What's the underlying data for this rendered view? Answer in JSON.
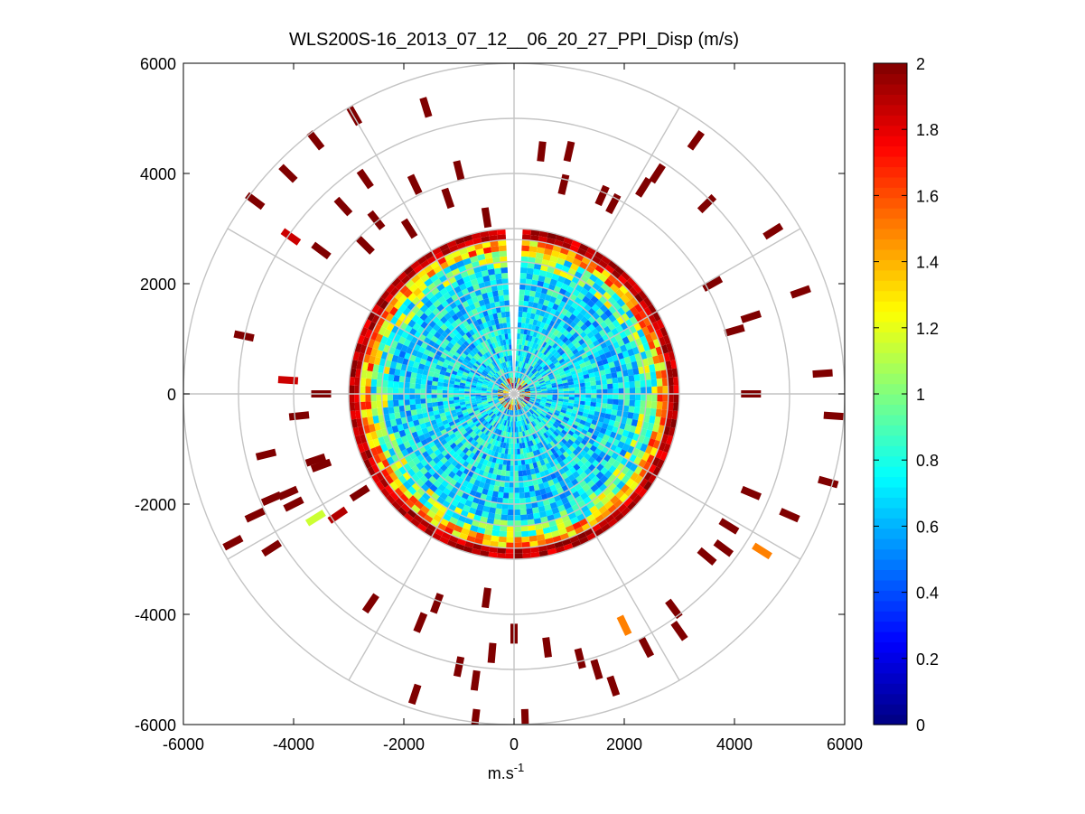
{
  "chart_data": {
    "type": "heatmap",
    "subtype": "polar PPI scan",
    "title": "WLS200S-16_2013_07_12__06_20_27_PPI_Disp (m/s)",
    "xlabel": "m.s",
    "xlabel_superscript": "-1",
    "ylabel": "",
    "xlim": [
      -6000,
      6000
    ],
    "ylim": [
      -6000,
      6000
    ],
    "xticks": [
      -6000,
      -4000,
      -2000,
      0,
      2000,
      4000,
      6000
    ],
    "yticks": [
      6000,
      4000,
      2000,
      0,
      -2000,
      -4000,
      -6000
    ],
    "xtick_labels": [
      "-6000",
      "-4000",
      "-2000",
      "0",
      "2000",
      "4000",
      "6000"
    ],
    "ytick_labels": [
      "6000",
      "4000",
      "2000",
      "0",
      "-2000",
      "-4000",
      "-6000"
    ],
    "polar_grid": {
      "range_rings": [
        400,
        800,
        1200,
        1600,
        2000,
        2400,
        2800,
        3000,
        4000,
        5000,
        6000
      ],
      "spoke_angles_deg": [
        0,
        30,
        60,
        90,
        120,
        150,
        180,
        210,
        240,
        270,
        300,
        330
      ],
      "color": "#c4c4c4"
    },
    "dense_region": {
      "range_max_m": 2950,
      "missing_sector_az_deg": [
        -4,
        4
      ],
      "typical_value": 0.7,
      "edge_value": 1.3,
      "rim_value": 2.0
    },
    "colorbar": {
      "colormap": "jet",
      "range": [
        0,
        2
      ],
      "ticks": [
        0,
        0.2,
        0.4,
        0.6,
        0.8,
        1,
        1.2,
        1.4,
        1.6,
        1.8,
        2
      ],
      "tick_labels": [
        "0",
        "0.2",
        "0.4",
        "0.6",
        "0.8",
        "1",
        "1.2",
        "1.4",
        "1.6",
        "1.8",
        "2"
      ]
    },
    "sparse_points": [
      {
        "x": -1600,
        "y": 5200,
        "v": 2
      },
      {
        "x": -2900,
        "y": 5050,
        "v": 2
      },
      {
        "x": -3600,
        "y": 4600,
        "v": 2
      },
      {
        "x": -4100,
        "y": 4000,
        "v": 2
      },
      {
        "x": -4700,
        "y": 3500,
        "v": 2
      },
      {
        "x": -3100,
        "y": 3400,
        "v": 2
      },
      {
        "x": -2700,
        "y": 3900,
        "v": 2
      },
      {
        "x": -2500,
        "y": 3150,
        "v": 2
      },
      {
        "x": -1800,
        "y": 3800,
        "v": 2
      },
      {
        "x": -1200,
        "y": 3550,
        "v": 2
      },
      {
        "x": -4050,
        "y": 2850,
        "v": 1.85
      },
      {
        "x": -3500,
        "y": 2600,
        "v": 2
      },
      {
        "x": -2700,
        "y": 2700,
        "v": 2
      },
      {
        "x": -1900,
        "y": 3000,
        "v": 2
      },
      {
        "x": -500,
        "y": 3200,
        "v": 2
      },
      {
        "x": -1000,
        "y": 4050,
        "v": 2
      },
      {
        "x": 500,
        "y": 4400,
        "v": 2
      },
      {
        "x": 1000,
        "y": 4400,
        "v": 2
      },
      {
        "x": 900,
        "y": 3800,
        "v": 2
      },
      {
        "x": 1600,
        "y": 3600,
        "v": 2
      },
      {
        "x": 1800,
        "y": 3450,
        "v": 2
      },
      {
        "x": 2350,
        "y": 3750,
        "v": 2
      },
      {
        "x": 2600,
        "y": 4000,
        "v": 2
      },
      {
        "x": 3300,
        "y": 4600,
        "v": 2
      },
      {
        "x": 3500,
        "y": 3450,
        "v": 2
      },
      {
        "x": 4700,
        "y": 2950,
        "v": 2
      },
      {
        "x": 3600,
        "y": 2000,
        "v": 2
      },
      {
        "x": 5200,
        "y": 1850,
        "v": 2
      },
      {
        "x": 4300,
        "y": 1400,
        "v": 2
      },
      {
        "x": 4000,
        "y": 1150,
        "v": 2
      },
      {
        "x": 5600,
        "y": 370,
        "v": 2
      },
      {
        "x": 4300,
        "y": 0,
        "v": 2
      },
      {
        "x": 5800,
        "y": -400,
        "v": 2
      },
      {
        "x": 5700,
        "y": -1600,
        "v": 2
      },
      {
        "x": 4300,
        "y": -1800,
        "v": 2
      },
      {
        "x": 5000,
        "y": -2200,
        "v": 2
      },
      {
        "x": 3900,
        "y": -2400,
        "v": 2
      },
      {
        "x": 4500,
        "y": -2850,
        "v": 1.5
      },
      {
        "x": 3800,
        "y": -2800,
        "v": 2
      },
      {
        "x": 3500,
        "y": -2950,
        "v": 2
      },
      {
        "x": 2900,
        "y": -3900,
        "v": 2
      },
      {
        "x": 2000,
        "y": -4200,
        "v": 1.5
      },
      {
        "x": 3000,
        "y": -4300,
        "v": 2
      },
      {
        "x": 2400,
        "y": -4600,
        "v": 2
      },
      {
        "x": 1500,
        "y": -5000,
        "v": 2
      },
      {
        "x": 1200,
        "y": -4800,
        "v": 2
      },
      {
        "x": 1800,
        "y": -5300,
        "v": 2
      },
      {
        "x": 600,
        "y": -4600,
        "v": 2
      },
      {
        "x": 0,
        "y": -4350,
        "v": 2
      },
      {
        "x": -400,
        "y": -4700,
        "v": 2
      },
      {
        "x": -1000,
        "y": -4950,
        "v": 2
      },
      {
        "x": -700,
        "y": -5200,
        "v": 2
      },
      {
        "x": 200,
        "y": -5900,
        "v": 2
      },
      {
        "x": -700,
        "y": -5900,
        "v": 2
      },
      {
        "x": -1800,
        "y": -5450,
        "v": 2
      },
      {
        "x": -1700,
        "y": -4150,
        "v": 2
      },
      {
        "x": -1400,
        "y": -3800,
        "v": 2
      },
      {
        "x": -500,
        "y": -3700,
        "v": 2
      },
      {
        "x": -2600,
        "y": -3800,
        "v": 2
      },
      {
        "x": -3600,
        "y": -2250,
        "v": 1.15
      },
      {
        "x": -3200,
        "y": -2200,
        "v": 1.9
      },
      {
        "x": -4400,
        "y": -1900,
        "v": 2
      },
      {
        "x": -4700,
        "y": -2200,
        "v": 2
      },
      {
        "x": -5100,
        "y": -2700,
        "v": 2
      },
      {
        "x": -4400,
        "y": -2800,
        "v": 2
      },
      {
        "x": -4000,
        "y": -2000,
        "v": 2
      },
      {
        "x": -2800,
        "y": -1800,
        "v": 2
      },
      {
        "x": -3600,
        "y": -1200,
        "v": 2
      },
      {
        "x": -4500,
        "y": -1100,
        "v": 2
      },
      {
        "x": -4100,
        "y": -1800,
        "v": 2
      },
      {
        "x": -3500,
        "y": -1300,
        "v": 2
      },
      {
        "x": -4100,
        "y": 250,
        "v": 1.85
      },
      {
        "x": -3500,
        "y": 0,
        "v": 2
      },
      {
        "x": -4900,
        "y": 1050,
        "v": 2
      },
      {
        "x": -3900,
        "y": -400,
        "v": 2
      }
    ]
  }
}
